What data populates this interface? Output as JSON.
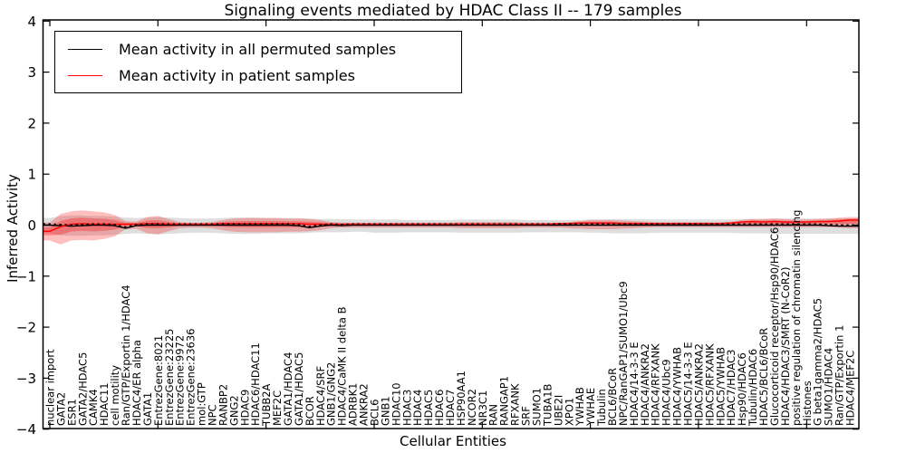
{
  "figure": {
    "title": "Signaling events mediated by HDAC Class II -- 179 samples",
    "xlabel": "Cellular Entities",
    "ylabel": "Inferred Activity"
  },
  "legend": {
    "items": [
      {
        "label": "Mean activity in all permuted samples",
        "color": "#000000"
      },
      {
        "label": "Mean activity in patient samples",
        "color": "#ff0000"
      }
    ]
  },
  "axes": {
    "y_tick_labels": [
      "4",
      "3",
      "2",
      "1",
      "0",
      "−1",
      "−2",
      "−3",
      "−4"
    ],
    "y_tick_values": [
      4,
      3,
      2,
      1,
      0,
      -1,
      -2,
      -3,
      -4
    ],
    "x_major_tick_indices": [
      0,
      10,
      20,
      30,
      40,
      50,
      60,
      70
    ]
  },
  "colors": {
    "permuted_line": "#000000",
    "patient_line": "#ff0000",
    "permuted_band": "#888888",
    "patient_band": "#ff0000",
    "frame": "#000000"
  },
  "chart_data": {
    "type": "line",
    "title": "Signaling events mediated by HDAC Class II -- 179 samples",
    "xlabel": "Cellular Entities",
    "ylabel": "Inferred Activity",
    "ylim": [
      -4,
      4
    ],
    "grid": false,
    "legend_position": "upper left",
    "categories": [
      "nuclear import",
      "GATA2",
      "ESR1",
      "GATA2/HDAC5",
      "CAMK4",
      "HDAC11",
      "cell motility",
      "Ran/GTP/Exportin 1/HDAC4",
      "HDAC4/ER alpha",
      "GATA1",
      "EntrezGene:8021",
      "EntrezGene:23225",
      "EntrezGene:9972",
      "EntrezGene:23636",
      "mol:GTP",
      "NPC",
      "RANBP2",
      "GNG2",
      "HDAC9",
      "HDAC6/HDAC11",
      "TUBB2A",
      "MEF2C",
      "GATA1/HDAC4",
      "GATA1/HDAC5",
      "BCOR",
      "HDAC4/SRF",
      "GNB1/GNG2",
      "HDAC4/CaMK II delta B",
      "ADRBK1",
      "ANKRA2",
      "BCL6",
      "GNB1",
      "HDAC10",
      "HDAC3",
      "HDAC4",
      "HDAC5",
      "HDAC6",
      "HDAC7",
      "HSP90AA1",
      "NCOR2",
      "NR3C1",
      "RAN",
      "RANGAP1",
      "RFXANK",
      "SRF",
      "SUMO1",
      "TUBA1B",
      "UBE2I",
      "XPO1",
      "YWHAB",
      "YWHAE",
      "Tubulin",
      "BCL6/BCoR",
      "NPC/RanGAP1/SUMO1/Ubc9",
      "HDAC4/14-3-3 E",
      "HDAC4/ANKRA2",
      "HDAC4/RFXANK",
      "HDAC4/Ubc9",
      "HDAC4/YWHAB",
      "HDAC5/14-3-3 E",
      "HDAC5/ANKRA2",
      "HDAC5/RFXANK",
      "HDAC5/YWHAB",
      "HDAC7/HDAC3",
      "Hsp90/HDAC6",
      "Tubulin/HDAC6",
      "HDAC5/BCL6/BCoR",
      "Glucocorticoid receptor/Hsp90/HDAC6",
      "HDAC4/HDAC3/SMRT (N-CoR2)",
      "positive regulation of chromatin silencing",
      "Histones",
      "G beta1gamma2/HDAC5",
      "SUMO1/HDAC4",
      "Ran/GTP/Exportin 1",
      "HDAC4/MEF2C"
    ],
    "series": [
      {
        "name": "Mean activity in all permuted samples",
        "color": "#000000",
        "values": [
          0,
          -0.01,
          -0.02,
          -0.01,
          0,
          0,
          -0.01,
          -0.06,
          -0.01,
          0,
          0,
          0,
          0,
          0,
          0,
          0,
          0,
          0,
          0,
          0,
          0,
          0,
          0,
          -0.01,
          -0.05,
          -0.02,
          0,
          -0.01,
          0,
          0,
          0,
          0,
          0,
          0,
          0,
          0,
          0,
          0,
          0,
          0,
          0,
          0,
          0,
          0,
          0,
          0,
          0,
          0,
          0,
          0,
          0,
          0,
          0,
          0,
          0,
          0,
          0,
          0,
          0,
          0,
          0,
          0,
          0,
          0,
          0,
          0,
          0,
          0,
          0,
          0,
          0,
          0,
          -0.01,
          -0.02,
          -0.02
        ]
      },
      {
        "name": "Mean activity in patient samples",
        "color": "#ff0000",
        "values": [
          -0.12,
          -0.03,
          0.02,
          0.03,
          0.02,
          0.02,
          0.02,
          0.02,
          0.02,
          0.03,
          0.03,
          0.02,
          0.02,
          0.02,
          0.02,
          0.02,
          0.03,
          0.03,
          0.03,
          0.03,
          0.03,
          0.03,
          0.03,
          0.03,
          0.02,
          0.02,
          0.02,
          0.02,
          0.02,
          0.02,
          0.02,
          0.02,
          0.02,
          0.02,
          0.02,
          0.02,
          0.02,
          0.02,
          0.02,
          0.02,
          0.02,
          0.02,
          0.02,
          0.02,
          0.02,
          0.02,
          0.02,
          0.03,
          0.03,
          0.04,
          0.04,
          0.04,
          0.04,
          0.03,
          0.03,
          0.03,
          0.03,
          0.03,
          0.03,
          0.03,
          0.03,
          0.03,
          0.03,
          0.04,
          0.06,
          0.07,
          0.06,
          0.07,
          0.06,
          0.06,
          0.06,
          0.07,
          0.07,
          0.08,
          0.1
        ]
      }
    ],
    "bands": [
      {
        "name": "permuted_band",
        "color": "#888888",
        "upper": [
          0.14,
          0.18,
          0.19,
          0.19,
          0.18,
          0.18,
          0.17,
          0.15,
          0.14,
          0.15,
          0.16,
          0.15,
          0.14,
          0.13,
          0.13,
          0.13,
          0.14,
          0.15,
          0.15,
          0.15,
          0.14,
          0.14,
          0.14,
          0.14,
          0.13,
          0.12,
          0.12,
          0.12,
          0.11,
          0.11,
          0.11,
          0.11,
          0.11,
          0.1,
          0.1,
          0.1,
          0.1,
          0.1,
          0.11,
          0.11,
          0.11,
          0.11,
          0.11,
          0.11,
          0.1,
          0.1,
          0.1,
          0.1,
          0.1,
          0.1,
          0.11,
          0.11,
          0.12,
          0.12,
          0.12,
          0.12,
          0.11,
          0.11,
          0.11,
          0.11,
          0.11,
          0.11,
          0.11,
          0.11,
          0.12,
          0.12,
          0.12,
          0.13,
          0.13,
          0.13,
          0.13,
          0.13,
          0.13,
          0.13,
          0.13
        ],
        "lower": [
          -0.16,
          -0.2,
          -0.21,
          -0.21,
          -0.2,
          -0.2,
          -0.19,
          -0.17,
          -0.16,
          -0.17,
          -0.18,
          -0.17,
          -0.16,
          -0.15,
          -0.15,
          -0.15,
          -0.16,
          -0.17,
          -0.17,
          -0.17,
          -0.16,
          -0.16,
          -0.16,
          -0.16,
          -0.15,
          -0.14,
          -0.14,
          -0.14,
          -0.13,
          -0.13,
          -0.15,
          -0.15,
          -0.15,
          -0.14,
          -0.14,
          -0.14,
          -0.14,
          -0.14,
          -0.15,
          -0.15,
          -0.15,
          -0.15,
          -0.15,
          -0.15,
          -0.14,
          -0.14,
          -0.14,
          -0.14,
          -0.14,
          -0.14,
          -0.15,
          -0.15,
          -0.16,
          -0.16,
          -0.16,
          -0.16,
          -0.15,
          -0.15,
          -0.15,
          -0.15,
          -0.15,
          -0.15,
          -0.15,
          -0.15,
          -0.16,
          -0.16,
          -0.16,
          -0.17,
          -0.17,
          -0.17,
          -0.17,
          -0.17,
          -0.17,
          -0.17,
          -0.17
        ]
      },
      {
        "name": "patient_band",
        "color": "#ff0000",
        "upper": [
          0.05,
          0.22,
          0.27,
          0.29,
          0.27,
          0.25,
          0.2,
          0.08,
          0.07,
          0.16,
          0.18,
          0.12,
          0.06,
          0.05,
          0.05,
          0.06,
          0.1,
          0.13,
          0.14,
          0.14,
          0.14,
          0.14,
          0.13,
          0.13,
          0.12,
          0.1,
          0.06,
          0.05,
          0.05,
          0.05,
          0.05,
          0.05,
          0.05,
          0.05,
          0.05,
          0.05,
          0.05,
          0.05,
          0.06,
          0.06,
          0.06,
          0.06,
          0.06,
          0.06,
          0.05,
          0.05,
          0.05,
          0.05,
          0.06,
          0.08,
          0.1,
          0.1,
          0.1,
          0.09,
          0.08,
          0.07,
          0.06,
          0.06,
          0.06,
          0.06,
          0.06,
          0.06,
          0.06,
          0.07,
          0.1,
          0.12,
          0.12,
          0.13,
          0.12,
          0.11,
          0.11,
          0.12,
          0.13,
          0.15,
          0.16
        ],
        "lower": [
          -0.3,
          -0.38,
          -0.3,
          -0.29,
          -0.3,
          -0.27,
          -0.22,
          -0.08,
          -0.07,
          -0.16,
          -0.18,
          -0.12,
          -0.06,
          -0.05,
          -0.05,
          -0.06,
          -0.1,
          -0.13,
          -0.14,
          -0.14,
          -0.14,
          -0.14,
          -0.13,
          -0.13,
          -0.12,
          -0.1,
          -0.06,
          -0.05,
          -0.05,
          -0.05,
          -0.05,
          -0.05,
          -0.05,
          -0.05,
          -0.05,
          -0.05,
          -0.05,
          -0.05,
          -0.06,
          -0.06,
          -0.06,
          -0.06,
          -0.06,
          -0.06,
          -0.05,
          -0.05,
          -0.05,
          -0.05,
          -0.06,
          -0.07,
          -0.08,
          -0.08,
          -0.08,
          -0.07,
          -0.06,
          -0.05,
          -0.04,
          -0.04,
          -0.04,
          -0.04,
          -0.04,
          -0.04,
          -0.04,
          -0.04,
          -0.04,
          -0.04,
          -0.04,
          -0.04,
          -0.04,
          -0.04,
          -0.04,
          -0.04,
          -0.04,
          -0.05,
          -0.06
        ]
      }
    ]
  }
}
